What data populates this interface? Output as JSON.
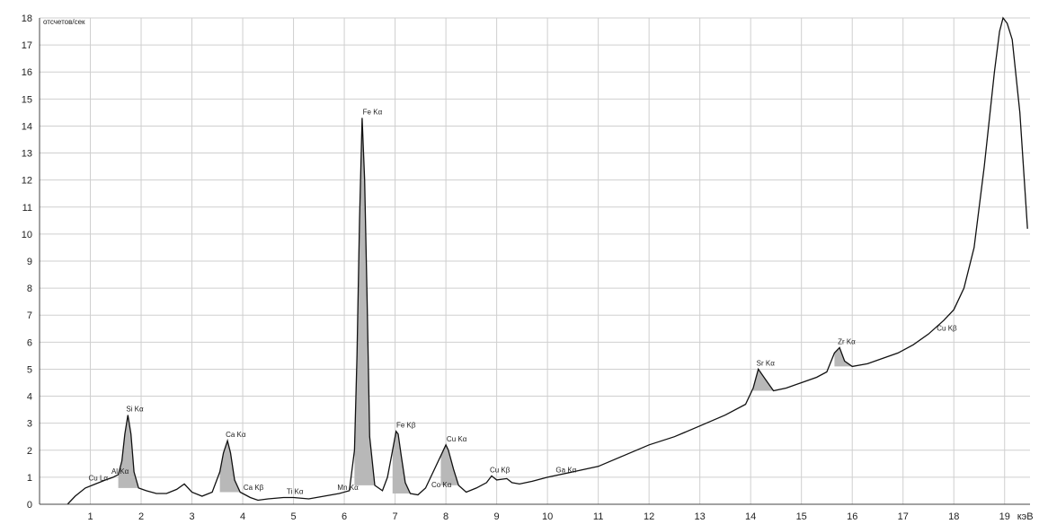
{
  "chart_data": {
    "type": "line",
    "ylabel": "отсчетов/сек",
    "xlabel_unit": "кэВ",
    "xlim": [
      0,
      19.5
    ],
    "ylim": [
      0,
      18
    ],
    "xticks": [
      1,
      2,
      3,
      4,
      5,
      6,
      7,
      8,
      9,
      10,
      11,
      12,
      13,
      14,
      15,
      16,
      17,
      18,
      19
    ],
    "yticks": [
      0,
      1,
      2,
      3,
      4,
      5,
      6,
      7,
      8,
      9,
      10,
      11,
      12,
      13,
      14,
      15,
      16,
      17,
      18
    ],
    "grid": true,
    "series": [
      {
        "x": [
          0.55,
          0.7,
          0.9,
          1.1,
          1.3,
          1.45,
          1.55,
          1.62,
          1.68,
          1.74,
          1.8,
          1.86,
          1.95,
          2.1,
          2.3,
          2.5,
          2.7,
          2.85,
          3.0,
          3.2,
          3.4,
          3.55,
          3.62,
          3.7,
          3.76,
          3.84,
          3.95,
          4.05,
          4.15,
          4.3,
          4.5,
          4.8,
          5.0,
          5.3,
          5.6,
          5.9,
          6.1,
          6.2,
          6.25,
          6.3,
          6.35,
          6.4,
          6.45,
          6.5,
          6.6,
          6.75,
          6.85,
          6.95,
          7.02,
          7.06,
          7.12,
          7.2,
          7.3,
          7.45,
          7.6,
          7.75,
          7.9,
          8.0,
          8.05,
          8.15,
          8.25,
          8.4,
          8.6,
          8.8,
          8.9,
          9.0,
          9.2,
          9.3,
          9.45,
          9.7,
          10.0,
          10.5,
          11.0,
          11.5,
          12.0,
          12.5,
          13.0,
          13.5,
          13.9,
          14.05,
          14.15,
          14.3,
          14.45,
          14.7,
          15.0,
          15.3,
          15.5,
          15.65,
          15.75,
          15.85,
          16.0,
          16.3,
          16.6,
          16.9,
          17.2,
          17.5,
          17.8,
          18.0,
          18.2,
          18.4,
          18.6,
          18.8,
          18.9,
          18.97,
          19.05,
          19.15,
          19.3,
          19.45
        ],
        "y": [
          0.0,
          0.3,
          0.6,
          0.75,
          0.9,
          1.0,
          1.1,
          1.6,
          2.6,
          3.3,
          2.6,
          1.2,
          0.6,
          0.5,
          0.4,
          0.4,
          0.55,
          0.75,
          0.45,
          0.3,
          0.45,
          1.2,
          1.9,
          2.35,
          1.9,
          0.9,
          0.45,
          0.35,
          0.25,
          0.15,
          0.2,
          0.25,
          0.25,
          0.2,
          0.3,
          0.4,
          0.5,
          2.0,
          5.5,
          10.5,
          14.3,
          12.0,
          7.5,
          2.5,
          0.7,
          0.5,
          1.0,
          2.0,
          2.7,
          2.6,
          1.8,
          0.8,
          0.4,
          0.35,
          0.6,
          1.2,
          1.8,
          2.2,
          2.0,
          1.3,
          0.7,
          0.45,
          0.6,
          0.8,
          1.05,
          0.9,
          0.95,
          0.8,
          0.75,
          0.85,
          1.0,
          1.2,
          1.4,
          1.8,
          2.2,
          2.5,
          2.9,
          3.3,
          3.7,
          4.3,
          5.0,
          4.6,
          4.2,
          4.3,
          4.5,
          4.7,
          4.9,
          5.6,
          5.8,
          5.3,
          5.1,
          5.2,
          5.4,
          5.6,
          5.9,
          6.3,
          6.8,
          7.2,
          8.0,
          9.5,
          12.5,
          16.0,
          17.5,
          18.0,
          17.8,
          17.2,
          14.5,
          10.2
        ]
      }
    ],
    "annotations": [
      {
        "label": "Si Kα",
        "x": 1.74,
        "y": 3.3
      },
      {
        "label": "Al Kα",
        "x": 1.45,
        "y": 1.0
      },
      {
        "label": "Cu Lα",
        "x": 1.0,
        "y": 0.75
      },
      {
        "label": "Ca Kα",
        "x": 3.7,
        "y": 2.35
      },
      {
        "label": "Ca Kβ",
        "x": 4.05,
        "y": 0.4
      },
      {
        "label": "Ti Kα",
        "x": 4.9,
        "y": 0.25
      },
      {
        "label": "Mn Kα",
        "x": 5.9,
        "y": 0.4
      },
      {
        "label": "Fe Kα",
        "x": 6.4,
        "y": 14.3
      },
      {
        "label": "Fe Kβ",
        "x": 7.06,
        "y": 2.7
      },
      {
        "label": "Co Kα",
        "x": 7.75,
        "y": 0.5
      },
      {
        "label": "Cu Kα",
        "x": 8.05,
        "y": 2.2
      },
      {
        "label": "Cu Kβ",
        "x": 8.9,
        "y": 1.05
      },
      {
        "label": "Ga Kα",
        "x": 10.2,
        "y": 1.05
      },
      {
        "label": "Sr Kα",
        "x": 14.15,
        "y": 5.0
      },
      {
        "label": "Zr Kα",
        "x": 15.75,
        "y": 5.8
      },
      {
        "label": "Cu Kβ",
        "x": 17.7,
        "y": 6.3
      }
    ]
  }
}
